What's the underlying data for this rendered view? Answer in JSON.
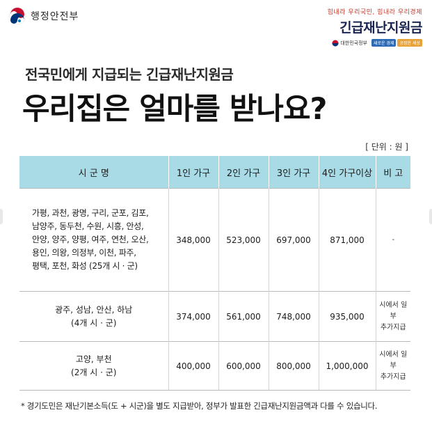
{
  "header": {
    "ministry_name": "행정안전부",
    "slogan": "힘내라 우리국민, 힘내라 우리경제",
    "campaign_title": "긴급재난지원금",
    "gov_name": "대한민국정부",
    "tag1": "새로운 경제",
    "tag2": "공정한 세상"
  },
  "title": {
    "subtitle": "전국민에게 지급되는 긴급재난지원금",
    "headline": "우리집은 얼마를 받나요?",
    "unit": "[ 단위 : 원 ]"
  },
  "table": {
    "headers": [
      "시 군 명",
      "1인 가구",
      "2인 가구",
      "3인 가구",
      "4인 가구이상",
      "비 고"
    ],
    "rows": [
      {
        "region_lines": [
          "가평, 과천, 광명, 구리, 군포, 김포,",
          "남양주, 동두천, 수원, 시흥, 안성,",
          "안양, 양주, 양평, 여주, 연천, 오산,",
          "용인, 의왕, 의정부, 이천, 파주,",
          "평택, 포천, 화성 (25개 시 · 군)"
        ],
        "one": "348,000",
        "two": "523,000",
        "three": "697,000",
        "four": "871,000",
        "note_lines": [
          "-"
        ]
      },
      {
        "region_lines": [
          "광주, 성남, 안산, 하남",
          "(4개 시 · 군)"
        ],
        "one": "374,000",
        "two": "561,000",
        "three": "748,000",
        "four": "935,000",
        "note_lines": [
          "시에서 일부",
          "추가지급"
        ]
      },
      {
        "region_lines": [
          "고양, 부천",
          "(2개 시 · 군)"
        ],
        "one": "400,000",
        "two": "600,000",
        "three": "800,000",
        "four": "1,000,000",
        "note_lines": [
          "시에서 일부",
          "추가지급"
        ]
      }
    ]
  },
  "footnote": "* 경기도민은  재난기본소득(도 + 시군)을 별도 지급받아, 정부가 발표한 긴급재난지원금액과 다를 수 있습니다.",
  "colors": {
    "header_bg": "#a8dbe6",
    "campaign_navy": "#1a2450",
    "slogan_red": "#c0392b"
  }
}
